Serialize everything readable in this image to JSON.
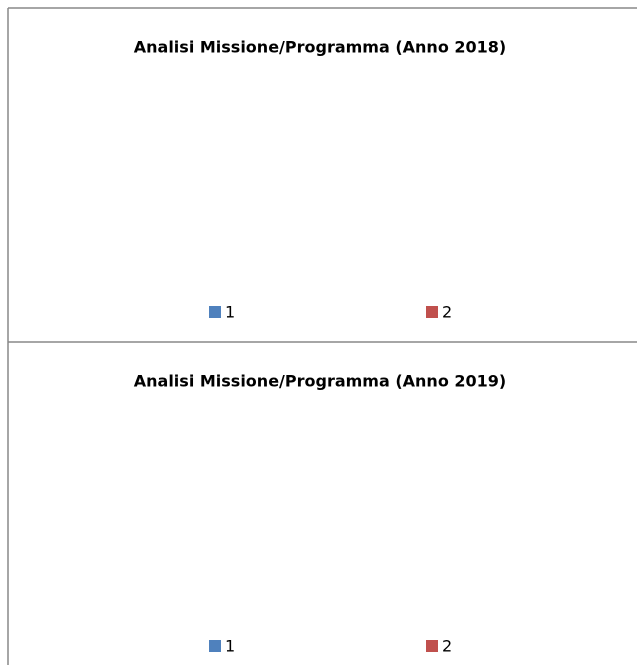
{
  "chart_data": [
    {
      "type": "pie",
      "title": "Analisi Missione/Programma (Anno 2018)",
      "categories": [
        "1",
        "2"
      ],
      "colors": [
        "#4f81bd",
        "#c0504d"
      ]
    },
    {
      "type": "pie",
      "title": "Analisi Missione/Programma (Anno 2019)",
      "categories": [
        "1",
        "2"
      ],
      "colors": [
        "#4f81bd",
        "#c0504d"
      ]
    }
  ]
}
